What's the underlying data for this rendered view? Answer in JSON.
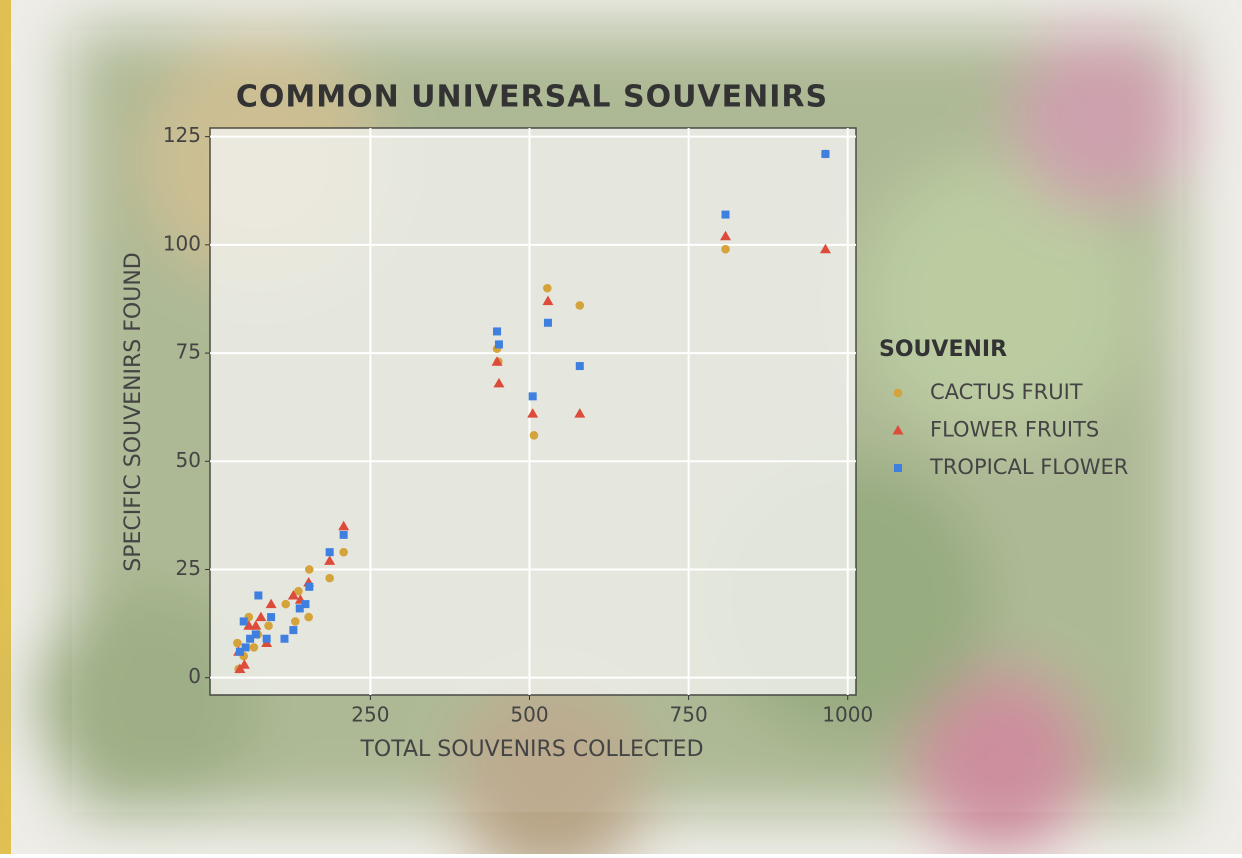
{
  "chart_data": {
    "type": "scatter",
    "title": "COMMON UNIVERSAL SOUVENIRS",
    "x_label": "TOTAL SOUVENIRS COLLECTED",
    "y_label": "SPECIFIC SOUVENIRS FOUND",
    "legend_title": "SOUVENIR",
    "legend": "right",
    "grid": true,
    "xlim": [
      -2,
      1013
    ],
    "xticks": [
      250,
      500,
      750,
      1000
    ],
    "ylim": [
      -4,
      127
    ],
    "yticks": [
      0,
      25,
      50,
      75,
      100,
      125
    ],
    "series": [
      {
        "name": "CACTUS FRUIT",
        "color": "#d4a33c",
        "marker": "circle",
        "x": [
          965,
          808,
          528,
          579,
          451,
          449,
          507,
          208,
          186,
          154,
          153,
          137,
          132,
          117,
          90,
          73,
          67,
          59,
          51,
          43,
          41
        ],
        "values": [
          121,
          99,
          90,
          86,
          73,
          76,
          56,
          29,
          23,
          25,
          14,
          20,
          13,
          17,
          12,
          10,
          7,
          14,
          5,
          2,
          8
        ]
      },
      {
        "name": "FLOWER FRUITS",
        "color": "#dd4b3b",
        "marker": "triangle",
        "x": [
          965,
          808,
          529,
          449,
          452,
          505,
          579,
          208,
          186,
          153,
          140,
          129,
          94,
          78,
          70,
          59,
          87,
          52,
          45,
          43
        ],
        "values": [
          99,
          102,
          87,
          73,
          68,
          61,
          61,
          35,
          27,
          22,
          18,
          19,
          17,
          14,
          12,
          12,
          8,
          3,
          2,
          6
        ]
      },
      {
        "name": "TROPICAL FLOWER",
        "color": "#3f7fe0",
        "marker": "square",
        "x": [
          965,
          808,
          449,
          452,
          529,
          579,
          505,
          208,
          186,
          154,
          148,
          139,
          129,
          115,
          94,
          87,
          74,
          70,
          61,
          51,
          54,
          45
        ],
        "values": [
          121,
          107,
          80,
          77,
          82,
          72,
          65,
          33,
          29,
          21,
          17,
          16,
          11,
          9,
          14,
          9,
          19,
          10,
          9,
          13,
          7,
          6
        ]
      }
    ]
  }
}
